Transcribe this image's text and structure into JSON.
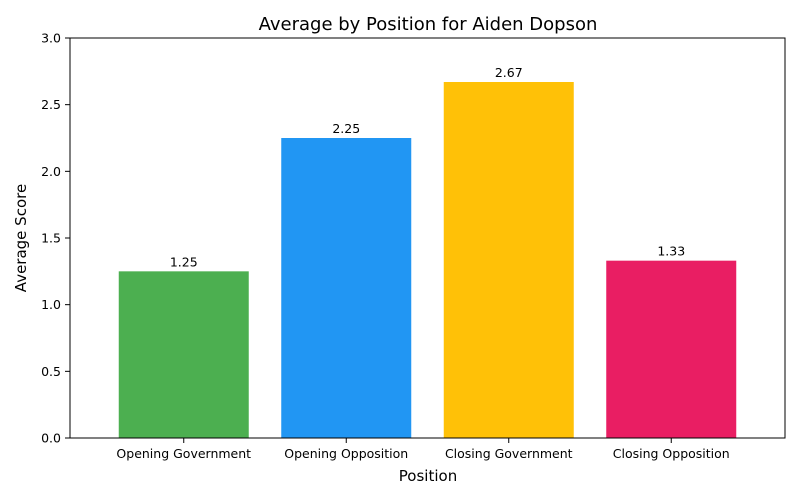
{
  "chart_data": {
    "type": "bar",
    "title": "Average by Position for Aiden Dopson",
    "xlabel": "Position",
    "ylabel": "Average Score",
    "categories": [
      "Opening Government",
      "Opening Opposition",
      "Closing Government",
      "Closing Opposition"
    ],
    "values": [
      1.25,
      2.25,
      2.67,
      1.33
    ],
    "value_labels": [
      "1.25",
      "2.25",
      "2.67",
      "1.33"
    ],
    "colors": [
      "#4caf50",
      "#2196f3",
      "#ffc107",
      "#e91e63"
    ],
    "ylim": [
      0,
      3
    ],
    "yticks": [
      0.0,
      0.5,
      1.0,
      1.5,
      2.0,
      2.5,
      3.0
    ],
    "ytick_labels": [
      "0.0",
      "0.5",
      "1.0",
      "1.5",
      "2.0",
      "2.5",
      "3.0"
    ],
    "grid": false,
    "legend": "none"
  }
}
